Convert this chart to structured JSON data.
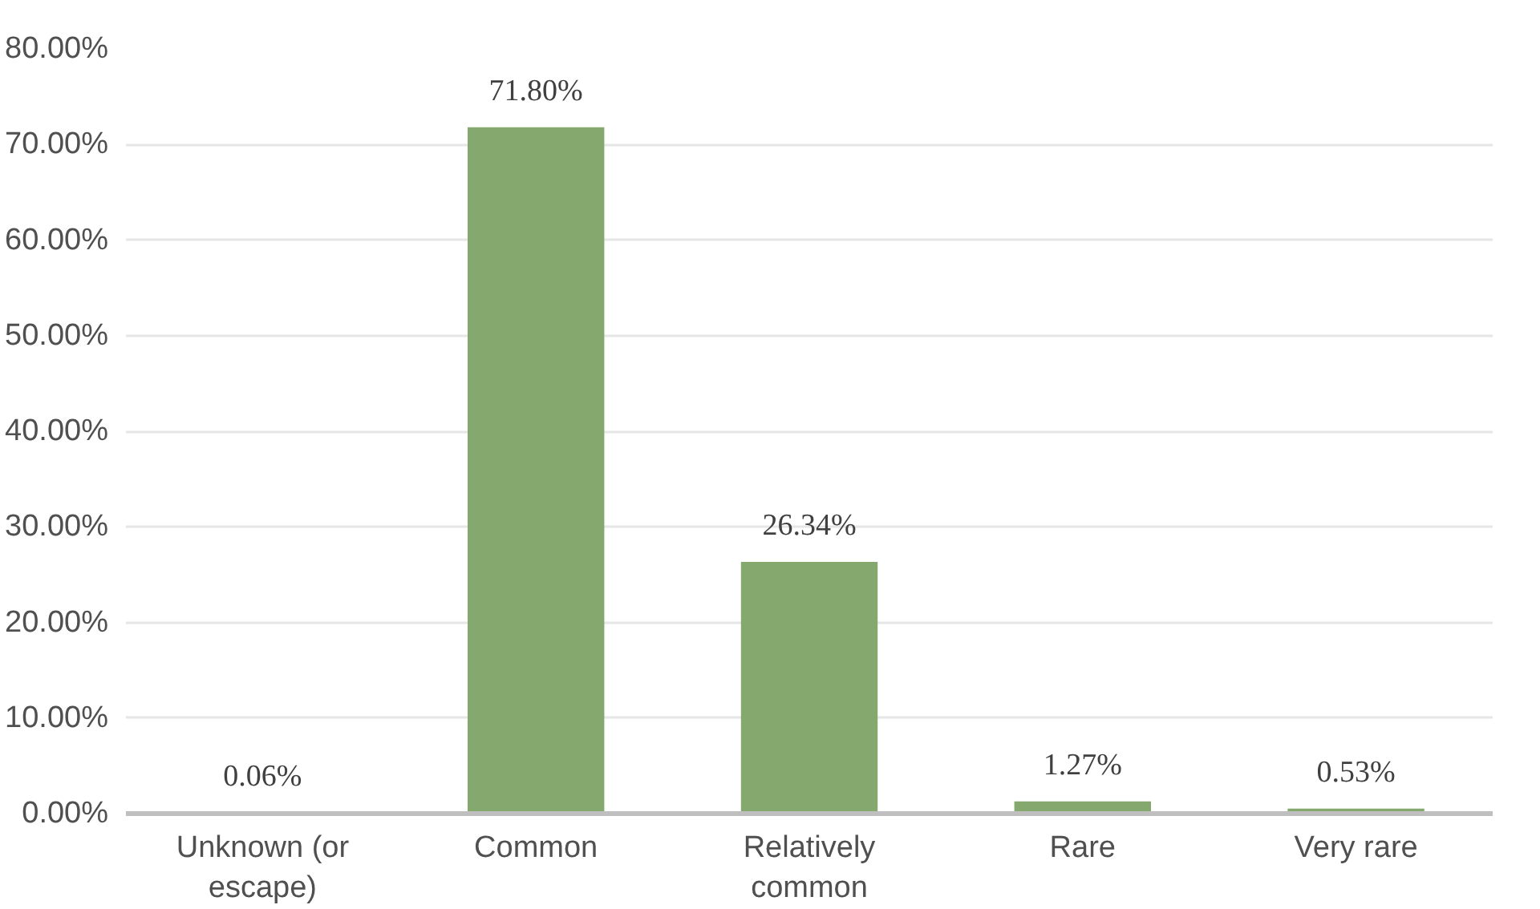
{
  "chart_data": {
    "type": "bar",
    "categories": [
      "Unknown (or escape)",
      "Common",
      "Relatively common",
      "Rare",
      "Very rare"
    ],
    "values": [
      0.06,
      71.8,
      26.34,
      1.27,
      0.53
    ],
    "color": "#84a86e",
    "value_labels": [
      "0.06%",
      "71.80%",
      "26.34%",
      "1.27%",
      "0.53%"
    ],
    "ylim": [
      0,
      80
    ],
    "yticks": [
      {
        "value": 0,
        "label": "0.00%"
      },
      {
        "value": 10,
        "label": "10.00%"
      },
      {
        "value": 20,
        "label": "20.00%"
      },
      {
        "value": 30,
        "label": "30.00%"
      },
      {
        "value": 40,
        "label": "40.00%"
      },
      {
        "value": 50,
        "label": "50.00%"
      },
      {
        "value": 60,
        "label": "60.00%"
      },
      {
        "value": 70,
        "label": "70.00%"
      },
      {
        "value": 80,
        "label": "80.00%"
      }
    ],
    "grid": "y"
  }
}
